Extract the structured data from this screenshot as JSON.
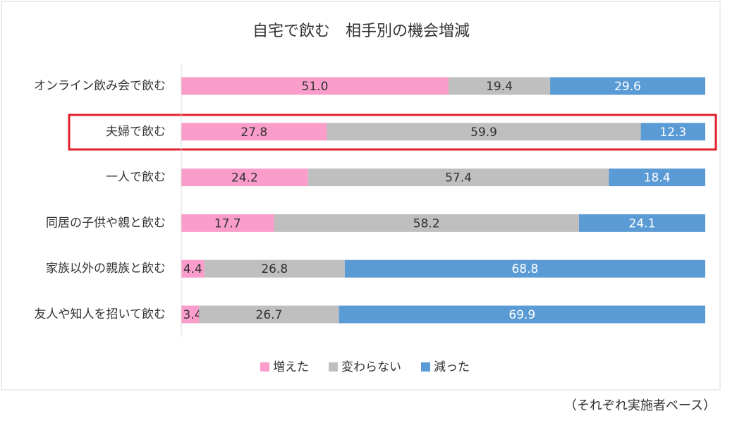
{
  "chart_data": {
    "type": "stacked-bar-horizontal",
    "title": "自宅で飲む　相手別の機会増減",
    "categories": [
      "オンライン飲み会で飲む",
      "夫婦で飲む",
      "一人で飲む",
      "同居の子供や親と飲む",
      "家族以外の親族と飲む",
      "友人や知人を招いて飲む"
    ],
    "series": [
      {
        "name": "増えた",
        "color": "#fa9dcb",
        "label_color": "#333333",
        "values": [
          51.0,
          27.8,
          24.2,
          17.7,
          4.4,
          3.4
        ],
        "value_labels": [
          "51.0",
          "27.8",
          "24.2",
          "17.7",
          "4.4",
          "3.4"
        ]
      },
      {
        "name": "変わらない",
        "color": "#bfbfbf",
        "label_color": "#333333",
        "values": [
          19.4,
          59.9,
          57.4,
          58.2,
          26.8,
          26.7
        ],
        "value_labels": [
          "19.4",
          "59.9",
          "57.4",
          "58.2",
          "26.8",
          "26.7"
        ]
      },
      {
        "name": "減った",
        "color": "#5b9bd5",
        "label_color": "#ffffff",
        "values": [
          29.6,
          12.3,
          18.4,
          24.1,
          68.8,
          69.9
        ],
        "value_labels": [
          "29.6",
          "12.3",
          "18.4",
          "24.1",
          "68.8",
          "69.9"
        ]
      }
    ],
    "xlim": [
      0,
      100
    ],
    "legend": "bottom",
    "note": "（それぞれ実施者ベース）"
  }
}
